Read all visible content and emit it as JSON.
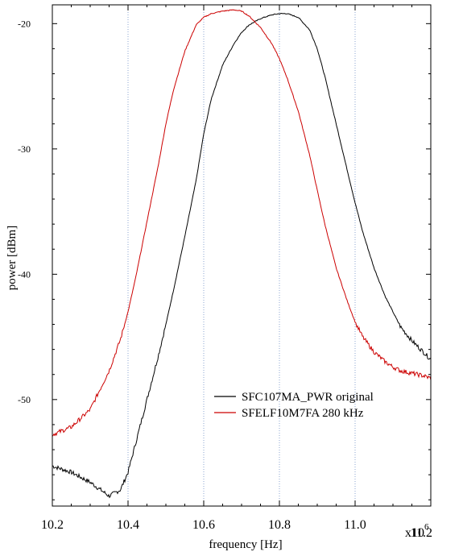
{
  "chart_data": {
    "type": "line",
    "xlabel": "frequency [Hz]",
    "ylabel": "power [dBm]",
    "x_multiplier_label": "x10",
    "x_multiplier_exponent": "6",
    "xlim": [
      10.2,
      11.2
    ],
    "ylim": [
      -58.5,
      -18.5
    ],
    "x_ticks": [
      10.2,
      10.4,
      10.6,
      10.8,
      11.0,
      11.2
    ],
    "x_tick_labels": [
      "10.2",
      "10.4",
      "10.6",
      "10.8",
      "11.0",
      "11.2"
    ],
    "y_ticks": [
      -50,
      -40,
      -30,
      -20
    ],
    "y_tick_labels": [
      "-50",
      "-40",
      "-30",
      "-20"
    ],
    "grid": {
      "x": true,
      "y": false,
      "style": "dotted"
    },
    "legend_position": "bottom-right",
    "series": [
      {
        "name": "SFC107MA_PWR original",
        "color": "#000000",
        "x": [
          10.2,
          10.25,
          10.3,
          10.35,
          10.38,
          10.4,
          10.42,
          10.45,
          10.48,
          10.5,
          10.52,
          10.55,
          10.58,
          10.6,
          10.62,
          10.65,
          10.68,
          10.7,
          10.72,
          10.75,
          10.78,
          10.8,
          10.82,
          10.85,
          10.88,
          10.9,
          10.92,
          10.95,
          10.98,
          11.0,
          11.02,
          11.05,
          11.08,
          11.1,
          11.12,
          11.15,
          11.18,
          11.2
        ],
        "y": [
          -55.3,
          -55.8,
          -56.6,
          -57.7,
          -57.2,
          -55.8,
          -53.5,
          -50.0,
          -46.5,
          -44.0,
          -41.3,
          -37.0,
          -32.5,
          -28.8,
          -26.0,
          -23.3,
          -21.6,
          -20.7,
          -20.1,
          -19.6,
          -19.3,
          -19.2,
          -19.2,
          -19.5,
          -20.5,
          -22.0,
          -24.2,
          -28.0,
          -31.8,
          -34.3,
          -36.6,
          -39.5,
          -41.8,
          -43.0,
          -44.2,
          -45.3,
          -46.2,
          -46.8
        ]
      },
      {
        "name": "SFELF10M7FA 280 kHz",
        "color": "#cc0000",
        "x": [
          10.2,
          10.25,
          10.3,
          10.35,
          10.38,
          10.4,
          10.42,
          10.45,
          10.48,
          10.5,
          10.52,
          10.55,
          10.58,
          10.6,
          10.62,
          10.65,
          10.68,
          10.7,
          10.72,
          10.75,
          10.78,
          10.8,
          10.82,
          10.85,
          10.88,
          10.9,
          10.92,
          10.95,
          10.98,
          11.0,
          11.02,
          11.05,
          11.08,
          11.1,
          11.12,
          11.15,
          11.18,
          11.2
        ],
        "y": [
          -52.8,
          -52.2,
          -50.8,
          -47.7,
          -45.2,
          -43.0,
          -40.3,
          -35.8,
          -31.3,
          -28.0,
          -25.3,
          -22.2,
          -20.1,
          -19.5,
          -19.2,
          -19.0,
          -18.9,
          -19.0,
          -19.4,
          -20.3,
          -21.6,
          -22.8,
          -24.3,
          -27.0,
          -30.5,
          -33.3,
          -36.0,
          -39.5,
          -42.2,
          -43.8,
          -45.0,
          -46.2,
          -47.0,
          -47.4,
          -47.7,
          -47.9,
          -48.1,
          -48.3
        ]
      }
    ]
  }
}
